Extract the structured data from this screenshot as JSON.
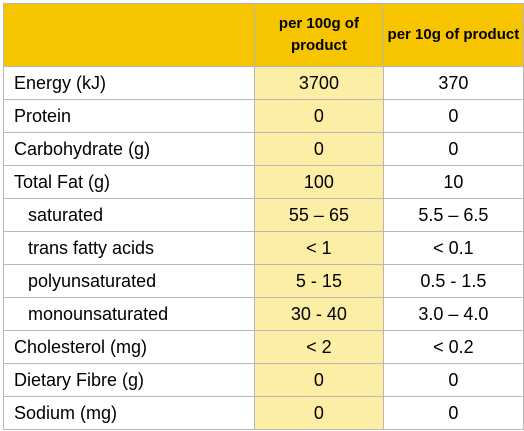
{
  "header": {
    "col_label": "",
    "col_100g": "per 100g of product",
    "col_10g": "per 10g of product"
  },
  "rows": [
    {
      "label": "Energy (kJ)",
      "per_100g": "3700",
      "per_10g": "370",
      "indent": false
    },
    {
      "label": "Protein",
      "per_100g": "0",
      "per_10g": "0",
      "indent": false
    },
    {
      "label": "Carbohydrate (g)",
      "per_100g": "0",
      "per_10g": "0",
      "indent": false
    },
    {
      "label": "Total Fat (g)",
      "per_100g": "100",
      "per_10g": "10",
      "indent": false
    },
    {
      "label": "saturated",
      "per_100g": "55 – 65",
      "per_10g": "5.5 – 6.5",
      "indent": true
    },
    {
      "label": "trans fatty acids",
      "per_100g": "< 1",
      "per_10g": "< 0.1",
      "indent": true
    },
    {
      "label": "polyunsaturated",
      "per_100g": "5 - 15",
      "per_10g": "0.5 - 1.5",
      "indent": true
    },
    {
      "label": "monounsaturated",
      "per_100g": "30 - 40",
      "per_10g": "3.0 – 4.0",
      "indent": true
    },
    {
      "label": "Cholesterol (mg)",
      "per_100g": "< 2",
      "per_10g": "< 0.2",
      "indent": false
    },
    {
      "label": "Dietary Fibre (g)",
      "per_100g": "0",
      "per_10g": "0",
      "indent": false
    },
    {
      "label": "Sodium (mg)",
      "per_100g": "0",
      "per_10g": "0",
      "indent": false
    }
  ],
  "colors": {
    "header_bg": "#f6c500",
    "highlight_col_bg": "#fdeea6",
    "border": "#b8b8b8"
  }
}
